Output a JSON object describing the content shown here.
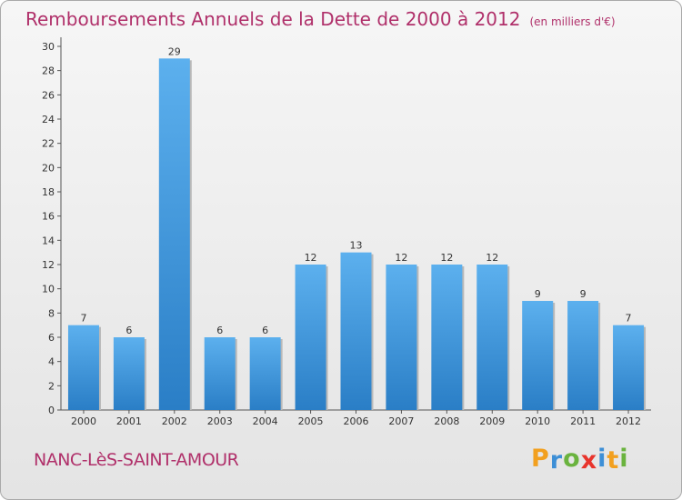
{
  "chart_data": {
    "type": "bar",
    "title": "Remboursements Annuels de la Dette de 2000 à 2012",
    "subtitle": "(en milliers d'€)",
    "categories": [
      "2000",
      "2001",
      "2002",
      "2003",
      "2004",
      "2005",
      "2006",
      "2007",
      "2008",
      "2009",
      "2010",
      "2011",
      "2012"
    ],
    "values": [
      7,
      6,
      29,
      6,
      6,
      12,
      13,
      12,
      12,
      12,
      9,
      9,
      7
    ],
    "ylim": [
      0,
      30
    ],
    "yticks": [
      0,
      2,
      4,
      6,
      8,
      10,
      12,
      14,
      16,
      18,
      20,
      22,
      24,
      26,
      28,
      30
    ],
    "grid": false,
    "bar_color": "#4a9fe0",
    "xlabel": "",
    "ylabel": ""
  },
  "footer": {
    "commune": "NANC-LèS-SAINT-AMOUR",
    "logo_letters": [
      "P",
      "r",
      "o",
      "x",
      "i",
      "t",
      "i"
    ],
    "logo_colors": [
      "#f2a01f",
      "#3d8fd6",
      "#6ab33e",
      "#e8342c",
      "#3d8fd6",
      "#f2a01f",
      "#6ab33e"
    ]
  },
  "colors": {
    "accent": "#b0306a"
  }
}
